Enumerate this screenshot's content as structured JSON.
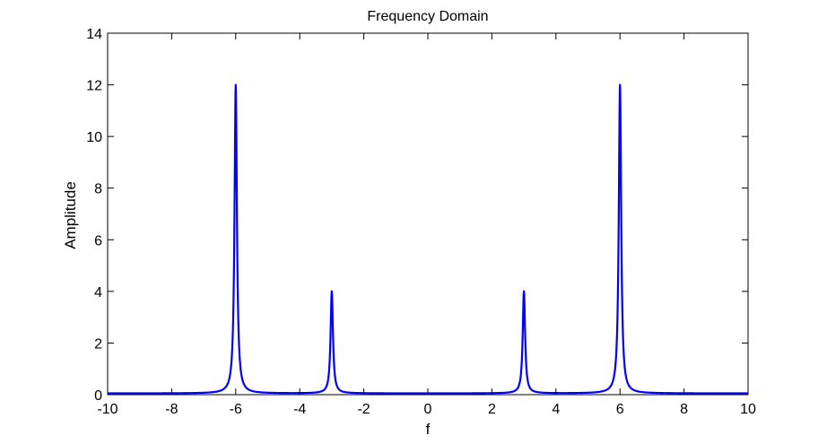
{
  "chart_data": {
    "type": "line",
    "title": "Frequency Domain",
    "xlabel": "f",
    "ylabel": "Amplitude",
    "xlim": [
      -10,
      10
    ],
    "ylim": [
      0,
      14
    ],
    "xticks": [
      -10,
      -8,
      -6,
      -4,
      -2,
      0,
      2,
      4,
      6,
      8,
      10
    ],
    "yticks": [
      0,
      2,
      4,
      6,
      8,
      10,
      12,
      14
    ],
    "xtick_labels": [
      "-10",
      "-8",
      "-6",
      "-4",
      "-2",
      "0",
      "2",
      "4",
      "6",
      "8",
      "10"
    ],
    "ytick_labels": [
      "0",
      "2",
      "4",
      "6",
      "8",
      "10",
      "12",
      "14"
    ],
    "grid": false,
    "legend": "none",
    "series": [
      {
        "color": "#0000ff",
        "peaks": [
          {
            "f": -6,
            "amplitude": 12
          },
          {
            "f": -3,
            "amplitude": 4
          },
          {
            "f": 3,
            "amplitude": 4
          },
          {
            "f": 6,
            "amplitude": 12
          }
        ],
        "baseline": 0.05
      }
    ]
  }
}
